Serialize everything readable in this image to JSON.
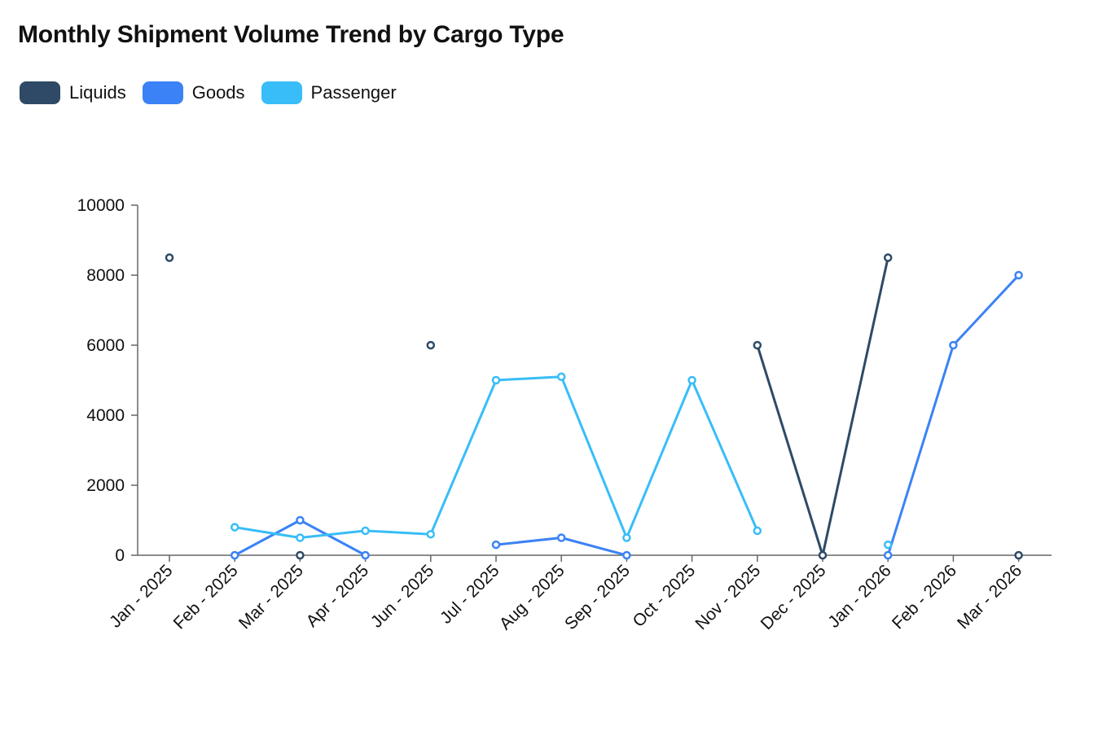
{
  "chart_data": {
    "type": "line",
    "title": "Monthly Shipment Volume Trend by Cargo Type",
    "xlabel": "",
    "ylabel": "",
    "ylim": [
      0,
      10000
    ],
    "yticks": [
      0,
      2000,
      4000,
      6000,
      8000,
      10000
    ],
    "grid": false,
    "legend_position": "top-left",
    "categories": [
      "Jan - 2025",
      "Feb - 2025",
      "Mar - 2025",
      "Apr - 2025",
      "Jun - 2025",
      "Jul - 2025",
      "Aug - 2025",
      "Sep - 2025",
      "Oct - 2025",
      "Nov - 2025",
      "Dec - 2025",
      "Jan - 2026",
      "Feb - 2026",
      "Mar - 2026"
    ],
    "series": [
      {
        "name": "Liquids",
        "color": "#2e4a66",
        "values": [
          8500,
          null,
          0,
          null,
          6000,
          null,
          null,
          null,
          null,
          6000,
          0,
          8500,
          null,
          0
        ]
      },
      {
        "name": "Goods",
        "color": "#3b82f6",
        "values": [
          null,
          0,
          1000,
          0,
          null,
          300,
          500,
          0,
          null,
          null,
          null,
          0,
          6000,
          8000
        ]
      },
      {
        "name": "Passenger",
        "color": "#38bdf8",
        "values": [
          null,
          800,
          500,
          700,
          600,
          5000,
          5100,
          500,
          5000,
          700,
          null,
          300,
          null,
          null
        ]
      }
    ]
  }
}
